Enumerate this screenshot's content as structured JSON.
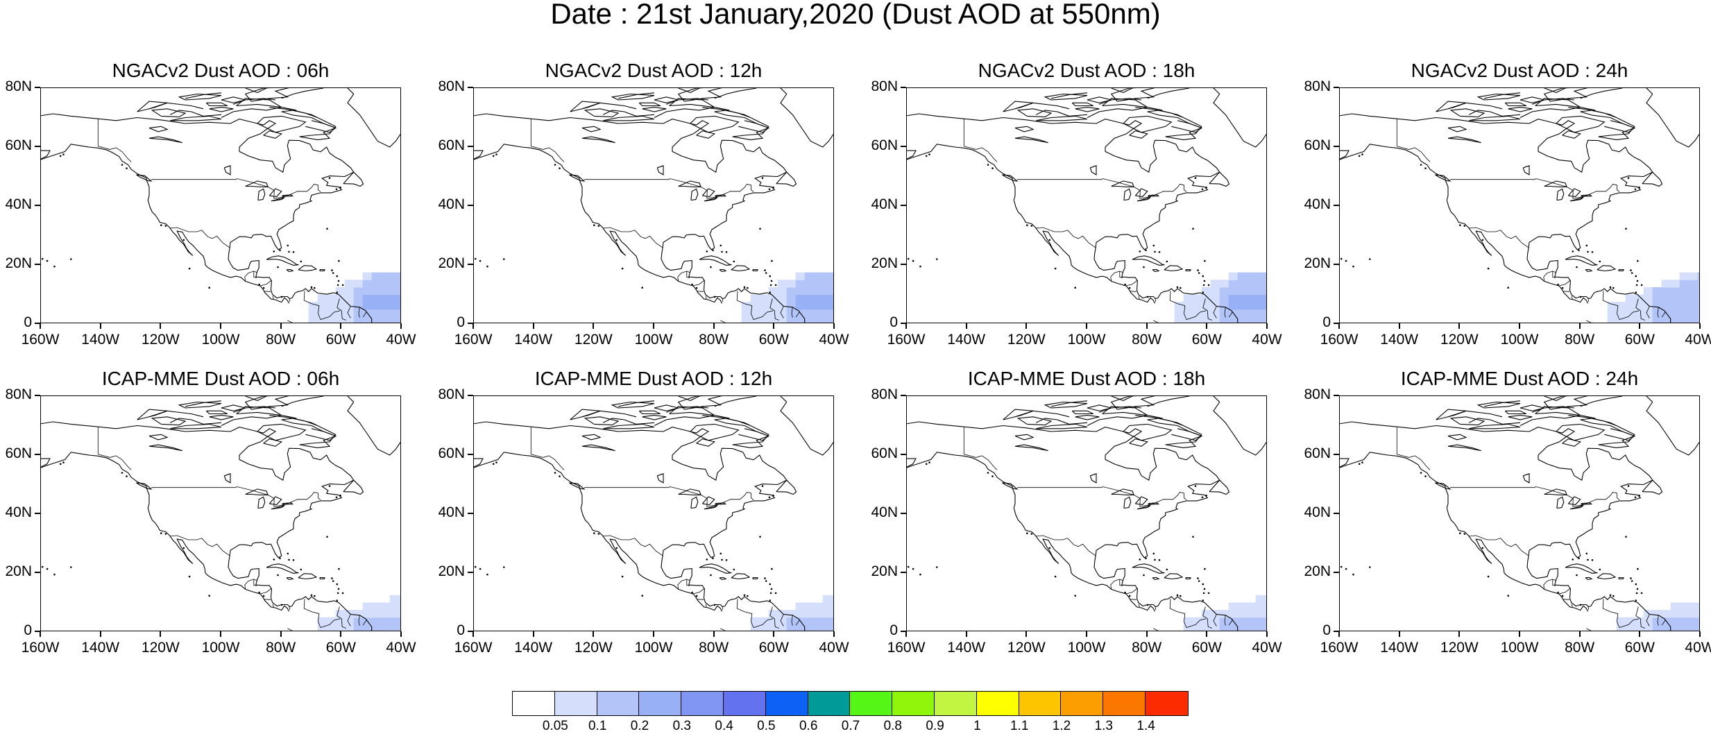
{
  "title": "Date : 21st January,2020 (Dust AOD at 550nm)",
  "axes": {
    "lon_labels": [
      "160W",
      "140W",
      "120W",
      "100W",
      "80W",
      "60W",
      "40W"
    ],
    "lat_labels": [
      "0",
      "20N",
      "40N",
      "60N",
      "80N"
    ],
    "lon_range": [
      -160,
      -40
    ],
    "lat_range": [
      0,
      80
    ]
  },
  "panels": [
    {
      "title": "NGACv2 Dust AOD : 06h",
      "model": "NGACv2",
      "hour": "06h",
      "dust_extent": 1.0
    },
    {
      "title": "NGACv2 Dust AOD : 12h",
      "model": "NGACv2",
      "hour": "12h",
      "dust_extent": 1.0
    },
    {
      "title": "NGACv2 Dust AOD : 18h",
      "model": "NGACv2",
      "hour": "18h",
      "dust_extent": 1.0
    },
    {
      "title": "NGACv2 Dust AOD : 24h",
      "model": "NGACv2",
      "hour": "24h",
      "dust_extent": 0.8
    },
    {
      "title": "ICAP-MME Dust AOD : 06h",
      "model": "ICAP-MME",
      "hour": "06h",
      "dust_extent": 0.6
    },
    {
      "title": "ICAP-MME Dust AOD : 12h",
      "model": "ICAP-MME",
      "hour": "12h",
      "dust_extent": 0.6
    },
    {
      "title": "ICAP-MME Dust AOD : 18h",
      "model": "ICAP-MME",
      "hour": "18h",
      "dust_extent": 0.6
    },
    {
      "title": "ICAP-MME Dust AOD : 24h",
      "model": "ICAP-MME",
      "hour": "24h",
      "dust_extent": 0.5
    }
  ],
  "colorbar": {
    "labels": [
      "0.05",
      "0.1",
      "0.2",
      "0.3",
      "0.4",
      "0.5",
      "0.6",
      "0.7",
      "0.8",
      "0.9",
      "1",
      "1.1",
      "1.2",
      "1.3",
      "1.4"
    ],
    "colors": [
      "#ffffff",
      "#d5dffb",
      "#b3c5f8",
      "#97b0f6",
      "#8196f2",
      "#6372ef",
      "#0d61f4",
      "#009a99",
      "#55f515",
      "#8ef50b",
      "#c1f542",
      "#ffff00",
      "#fcc500",
      "#fc9e00",
      "#fc7700",
      "#fc2b00"
    ]
  },
  "dust_colors": {
    "light": "#d5dffb",
    "medium": "#b3c5f8",
    "strong": "#97b0f6"
  }
}
